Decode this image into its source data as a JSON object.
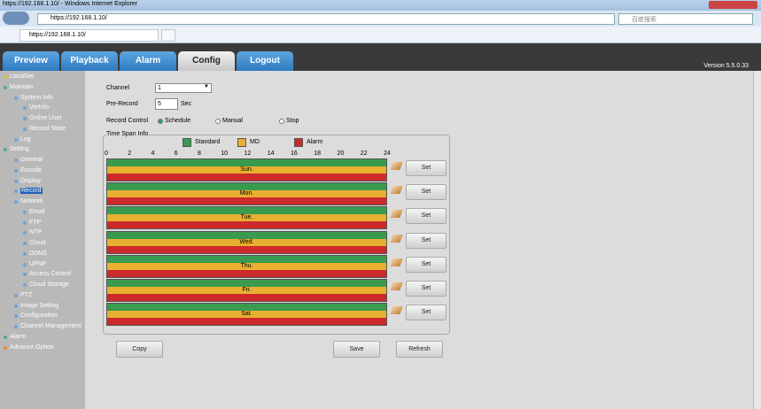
{
  "browser": {
    "title": "https://192.168.1.10/ - Windows Internet Explorer",
    "address": "https://192.168.1.10/",
    "search": "百度搜索",
    "tab": "https://192.168.1.10/"
  },
  "nav": {
    "tabs": [
      "Preview",
      "Playback",
      "Alarm",
      "Config",
      "Logout"
    ],
    "active": 3,
    "version": "Version 5.5.0.33"
  },
  "sidebar": [
    {
      "label": "LocalSet",
      "level": 0
    },
    {
      "label": "Maintain",
      "level": 0
    },
    {
      "label": "System Info",
      "level": 1
    },
    {
      "label": "VerInfo",
      "level": 2
    },
    {
      "label": "Online User",
      "level": 2
    },
    {
      "label": "Record State",
      "level": 2
    },
    {
      "label": "Log",
      "level": 1
    },
    {
      "label": "Setting",
      "level": 0
    },
    {
      "label": "General",
      "level": 1
    },
    {
      "label": "Encode",
      "level": 1
    },
    {
      "label": "Display",
      "level": 1
    },
    {
      "label": "Record",
      "level": 1,
      "selected": true
    },
    {
      "label": "Network",
      "level": 1
    },
    {
      "label": "Email",
      "level": 2
    },
    {
      "label": "FTP",
      "level": 2
    },
    {
      "label": "NTP",
      "level": 2
    },
    {
      "label": "Cloud",
      "level": 2
    },
    {
      "label": "DDNS",
      "level": 2
    },
    {
      "label": "UPNP",
      "level": 2
    },
    {
      "label": "Access Control",
      "level": 2
    },
    {
      "label": "Cloud Storage",
      "level": 2
    },
    {
      "label": "PTZ",
      "level": 1
    },
    {
      "label": "Image Setting",
      "level": 1
    },
    {
      "label": "Configuration",
      "level": 1
    },
    {
      "label": "Channel Management",
      "level": 1
    },
    {
      "label": "Alarm",
      "level": 0
    },
    {
      "label": "Advance Option",
      "level": 0
    }
  ],
  "form": {
    "channel_label": "Channel",
    "channel_value": "1",
    "prerecord_label": "Pre-Record",
    "prerecord_value": "5",
    "prerecord_unit": "Sec",
    "record_control_label": "Record Control",
    "record_options": [
      "Schedule",
      "Manual",
      "Stop"
    ],
    "record_selected": 0
  },
  "schedule": {
    "title": "Time Span Info",
    "legend": [
      "Standard",
      "MD",
      "Alarm"
    ],
    "hours": [
      0,
      2,
      4,
      6,
      8,
      10,
      12,
      14,
      16,
      18,
      20,
      22,
      24
    ],
    "days": [
      "Sun.",
      "Mon.",
      "Tue.",
      "Wed.",
      "Thu.",
      "Fri.",
      "Sat."
    ],
    "set_label": "Set"
  },
  "buttons": [
    "Copy",
    "Save",
    "Refresh"
  ]
}
